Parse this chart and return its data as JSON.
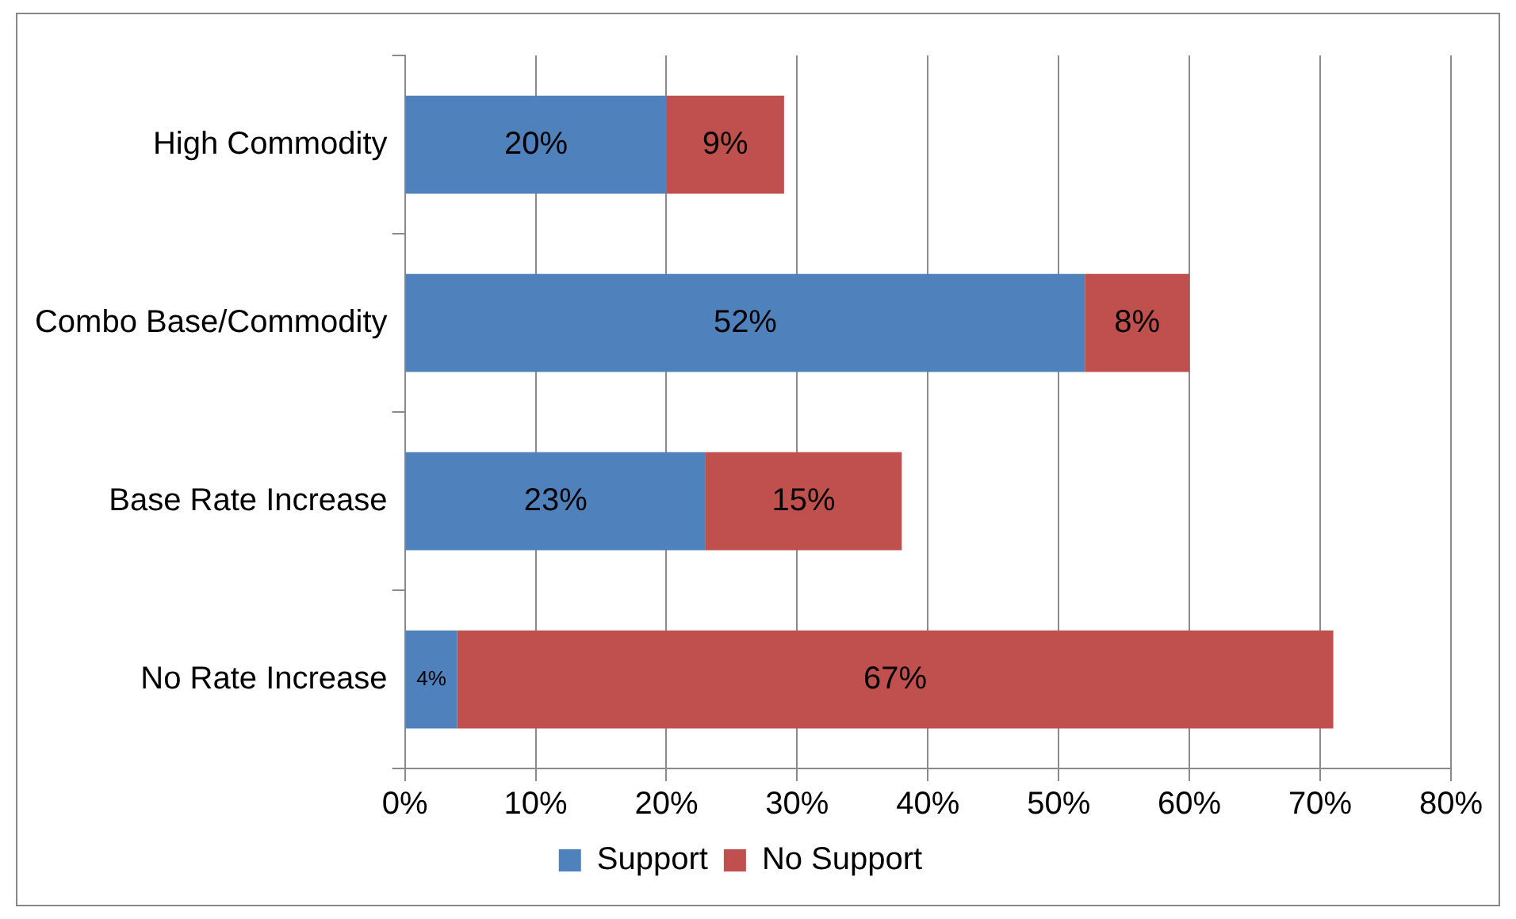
{
  "chart_data": {
    "type": "bar",
    "orientation": "horizontal",
    "stacked": true,
    "categories": [
      "High Commodity",
      "Combo Base/Commodity",
      "Base Rate Increase",
      "No Rate Increase"
    ],
    "series": [
      {
        "name": "Support",
        "color": "#4f81bd",
        "values": [
          20,
          52,
          23,
          4
        ],
        "value_labels": [
          "20%",
          "52%",
          "23%",
          "4%"
        ]
      },
      {
        "name": "No Support",
        "color": "#c0504d",
        "values": [
          9,
          8,
          15,
          67
        ],
        "value_labels": [
          "9%",
          "8%",
          "15%",
          "67%"
        ]
      }
    ],
    "xlim": [
      0,
      80
    ],
    "xticks": [
      {
        "value": 0,
        "label": "0%"
      },
      {
        "value": 10,
        "label": "10%"
      },
      {
        "value": 20,
        "label": "20%"
      },
      {
        "value": 30,
        "label": "30%"
      },
      {
        "value": 40,
        "label": "40%"
      },
      {
        "value": 50,
        "label": "50%"
      },
      {
        "value": 60,
        "label": "60%"
      },
      {
        "value": 70,
        "label": "70%"
      },
      {
        "value": 80,
        "label": "80%"
      }
    ],
    "grid": "x",
    "legend": "bottom"
  }
}
